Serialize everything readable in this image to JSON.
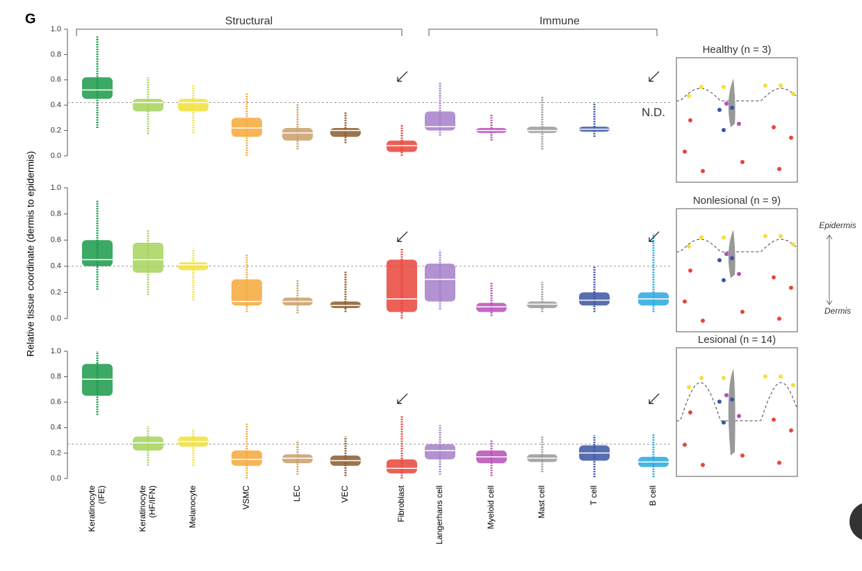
{
  "panel_label": "G",
  "ylabel": "Relative tissue coordinate (dermis to epidermis)",
  "groups": [
    "Structural",
    "Immune"
  ],
  "categories": [
    [
      "Keratinocyte",
      "(IFE)"
    ],
    [
      "Keratinocyte",
      "(HF/IFN)"
    ],
    [
      "Melanocyte"
    ],
    [
      "VSMC"
    ],
    [
      "LEC"
    ],
    [
      "VEC"
    ],
    [
      "Fibroblast"
    ],
    [
      "Langerhans cell"
    ],
    [
      "Myeloid cell"
    ],
    [
      "Mast cell"
    ],
    [
      "T cell"
    ],
    [
      "B cell"
    ]
  ],
  "colors": [
    "#1a9a4a",
    "#a6d45a",
    "#f2e03a",
    "#f5a83a",
    "#c8a06a",
    "#8b5a2b",
    "#e8443a",
    "#a57fc9",
    "#b84db8",
    "#999999",
    "#3a55a5",
    "#29a8e0"
  ],
  "epidermis_label": "Epidermis",
  "dermis_label": "Dermis",
  "chart_data": [
    {
      "type": "box",
      "title": "Healthy (n = 3)",
      "nd_label": "N.D.",
      "threshold": 0.42,
      "ylim": [
        0,
        1
      ],
      "yticks": [
        {
          "value": 0,
          "label": "0.0"
        },
        0.2,
        0.4,
        0.6,
        0.8,
        {
          "value": 1,
          "label": "1.0"
        }
      ],
      "boxes": [
        {
          "min": 0.22,
          "q1": 0.45,
          "median": 0.52,
          "q3": 0.62,
          "max": 0.95
        },
        {
          "min": 0.17,
          "q1": 0.35,
          "median": 0.42,
          "q3": 0.45,
          "max": 0.62
        },
        {
          "min": 0.18,
          "q1": 0.35,
          "median": 0.42,
          "q3": 0.45,
          "max": 0.56
        },
        {
          "min": 0.0,
          "q1": 0.15,
          "median": 0.22,
          "q3": 0.3,
          "max": 0.5
        },
        {
          "min": 0.05,
          "q1": 0.12,
          "median": 0.18,
          "q3": 0.22,
          "max": 0.41
        },
        {
          "min": 0.1,
          "q1": 0.15,
          "median": 0.2,
          "q3": 0.22,
          "max": 0.35
        },
        {
          "min": 0.0,
          "q1": 0.03,
          "median": 0.08,
          "q3": 0.12,
          "max": 0.25
        },
        {
          "min": 0.16,
          "q1": 0.2,
          "median": 0.23,
          "q3": 0.35,
          "max": 0.58
        },
        {
          "min": 0.12,
          "q1": 0.18,
          "median": 0.2,
          "q3": 0.22,
          "max": 0.33
        },
        {
          "min": 0.05,
          "q1": 0.18,
          "median": 0.2,
          "q3": 0.23,
          "max": 0.47
        },
        {
          "min": 0.15,
          "q1": 0.19,
          "median": 0.21,
          "q3": 0.23,
          "max": 0.42
        },
        null
      ]
    },
    {
      "type": "box",
      "title": "Nonlesional (n = 9)",
      "threshold": 0.4,
      "ylim": [
        0,
        1
      ],
      "yticks": [
        {
          "value": 0,
          "label": "0.0"
        },
        0.2,
        0.4,
        0.6,
        0.8,
        {
          "value": 1,
          "label": "1.0"
        }
      ],
      "boxes": [
        {
          "min": 0.22,
          "q1": 0.4,
          "median": 0.45,
          "q3": 0.6,
          "max": 0.9
        },
        {
          "min": 0.18,
          "q1": 0.35,
          "median": 0.45,
          "q3": 0.58,
          "max": 0.68
        },
        {
          "min": 0.14,
          "q1": 0.37,
          "median": 0.41,
          "q3": 0.43,
          "max": 0.53
        },
        {
          "min": 0.05,
          "q1": 0.1,
          "median": 0.13,
          "q3": 0.3,
          "max": 0.49
        },
        {
          "min": 0.04,
          "q1": 0.1,
          "median": 0.13,
          "q3": 0.16,
          "max": 0.3
        },
        {
          "min": 0.05,
          "q1": 0.08,
          "median": 0.1,
          "q3": 0.13,
          "max": 0.36
        },
        {
          "min": 0.0,
          "q1": 0.05,
          "median": 0.15,
          "q3": 0.45,
          "max": 0.54
        },
        {
          "min": 0.07,
          "q1": 0.13,
          "median": 0.3,
          "q3": 0.42,
          "max": 0.52
        },
        {
          "min": 0.02,
          "q1": 0.05,
          "median": 0.09,
          "q3": 0.12,
          "max": 0.28
        },
        {
          "min": 0.05,
          "q1": 0.08,
          "median": 0.11,
          "q3": 0.13,
          "max": 0.28
        },
        {
          "min": 0.05,
          "q1": 0.1,
          "median": 0.14,
          "q3": 0.2,
          "max": 0.4
        },
        {
          "min": 0.05,
          "q1": 0.1,
          "median": 0.15,
          "q3": 0.2,
          "max": 0.65
        }
      ]
    },
    {
      "type": "box",
      "title": "Lesional (n = 14)",
      "threshold": 0.27,
      "ylim": [
        0,
        1
      ],
      "yticks": [
        {
          "value": 0,
          "label": "0.0"
        },
        0.2,
        0.4,
        0.6,
        0.8,
        {
          "value": 1,
          "label": "1.0"
        }
      ],
      "boxes": [
        {
          "min": 0.5,
          "q1": 0.65,
          "median": 0.78,
          "q3": 0.9,
          "max": 1.0
        },
        {
          "min": 0.1,
          "q1": 0.22,
          "median": 0.28,
          "q3": 0.33,
          "max": 0.41
        },
        {
          "min": 0.1,
          "q1": 0.25,
          "median": 0.29,
          "q3": 0.33,
          "max": 0.39
        },
        {
          "min": 0.0,
          "q1": 0.1,
          "median": 0.15,
          "q3": 0.22,
          "max": 0.43
        },
        {
          "min": 0.03,
          "q1": 0.12,
          "median": 0.16,
          "q3": 0.19,
          "max": 0.3
        },
        {
          "min": 0.02,
          "q1": 0.1,
          "median": 0.14,
          "q3": 0.18,
          "max": 0.33
        },
        {
          "min": 0.0,
          "q1": 0.04,
          "median": 0.08,
          "q3": 0.15,
          "max": 0.49
        },
        {
          "min": 0.03,
          "q1": 0.15,
          "median": 0.22,
          "q3": 0.27,
          "max": 0.42
        },
        {
          "min": 0.02,
          "q1": 0.12,
          "median": 0.17,
          "q3": 0.22,
          "max": 0.3
        },
        {
          "min": 0.05,
          "q1": 0.13,
          "median": 0.16,
          "q3": 0.19,
          "max": 0.33
        },
        {
          "min": 0.01,
          "q1": 0.14,
          "median": 0.2,
          "q3": 0.26,
          "max": 0.34
        },
        {
          "min": 0.01,
          "q1": 0.09,
          "median": 0.13,
          "q3": 0.17,
          "max": 0.35
        }
      ]
    }
  ]
}
